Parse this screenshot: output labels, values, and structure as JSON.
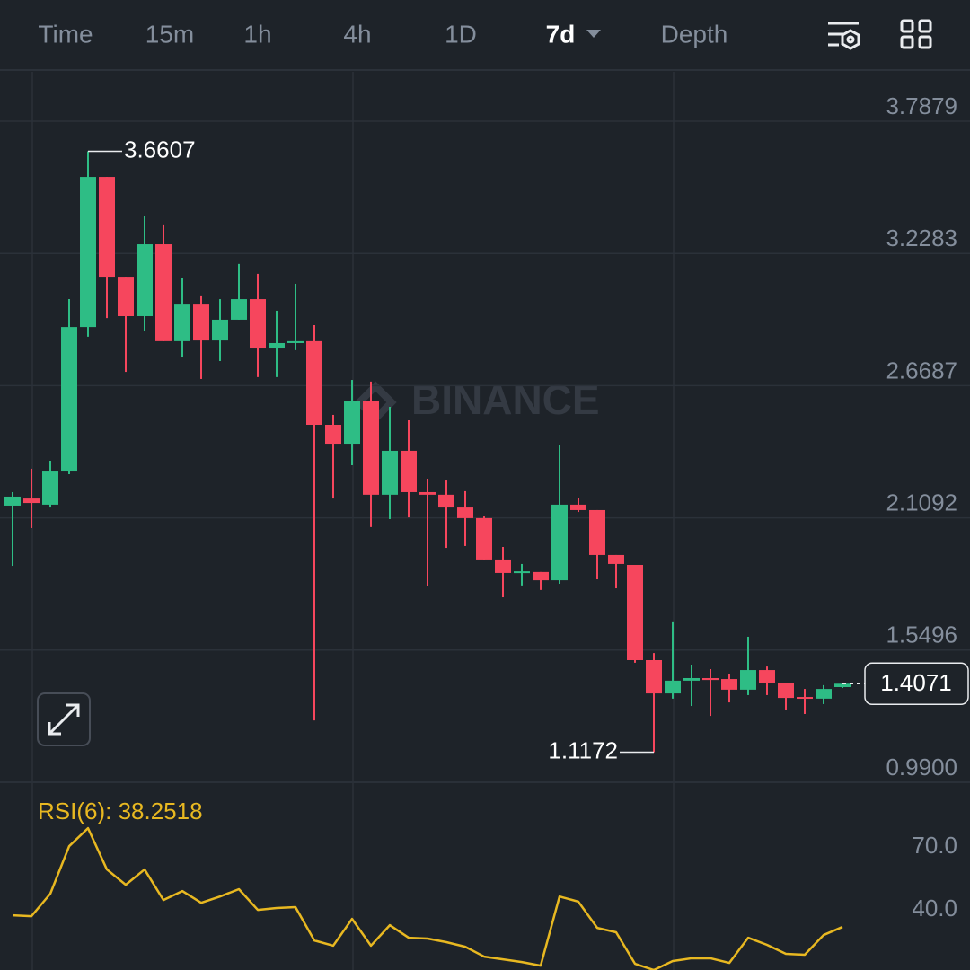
{
  "tabs": [
    {
      "label": "Time"
    },
    {
      "label": "15m"
    },
    {
      "label": "1h"
    },
    {
      "label": "4h"
    },
    {
      "label": "1D"
    },
    {
      "label": "7d",
      "active": true
    },
    {
      "label": "Depth"
    }
  ],
  "chart_data": [
    {
      "type": "candlestick",
      "watermark": "BINANCE",
      "up_color": "#2ebd85",
      "down_color": "#f6465d",
      "grid": true,
      "open": [
        2.161,
        2.191,
        2.165,
        2.309,
        2.917,
        3.552,
        3.13,
        2.963,
        3.267,
        2.857,
        3.012,
        2.86,
        2.948,
        3.035,
        2.826,
        2.849,
        2.857,
        2.503,
        2.423,
        2.602,
        2.207,
        2.393,
        2.218,
        2.207,
        2.153,
        2.108,
        1.933,
        1.876,
        1.88,
        1.845,
        2.165,
        2.142,
        1.952,
        1.91,
        1.507,
        1.366,
        1.42,
        1.431,
        1.427,
        1.382,
        1.465,
        1.412,
        1.351,
        1.344,
        1.393
      ],
      "high": [
        2.218,
        2.317,
        2.351,
        3.035,
        3.6607,
        3.552,
        3.13,
        3.385,
        3.351,
        3.126,
        3.047,
        3.035,
        3.184,
        3.142,
        2.986,
        3.1,
        2.925,
        2.545,
        2.693,
        2.686,
        2.579,
        2.522,
        2.275,
        2.271,
        2.222,
        2.115,
        1.986,
        1.914,
        1.88,
        2.416,
        2.195,
        2.142,
        1.952,
        1.91,
        1.537,
        1.671,
        1.488,
        1.469,
        1.45,
        1.606,
        1.48,
        1.412,
        1.385,
        1.401,
        1.41
      ],
      "low": [
        1.906,
        2.066,
        2.153,
        2.294,
        2.876,
        2.955,
        2.727,
        2.902,
        2.857,
        2.788,
        2.697,
        2.773,
        2.948,
        2.705,
        2.705,
        2.819,
        1.252,
        2.191,
        2.332,
        2.07,
        2.104,
        2.111,
        1.819,
        1.982,
        1.99,
        1.933,
        1.773,
        1.823,
        1.804,
        1.83,
        2.134,
        1.849,
        1.811,
        1.496,
        1.1172,
        1.344,
        1.313,
        1.271,
        1.328,
        1.359,
        1.359,
        1.298,
        1.279,
        1.321,
        1.389
      ],
      "close": [
        2.199,
        2.172,
        2.309,
        2.917,
        3.552,
        3.13,
        2.963,
        3.267,
        2.857,
        3.012,
        2.86,
        2.948,
        3.035,
        2.826,
        2.849,
        2.857,
        2.503,
        2.423,
        2.602,
        2.207,
        2.393,
        2.218,
        2.207,
        2.153,
        2.108,
        1.933,
        1.876,
        1.883,
        1.845,
        2.165,
        2.142,
        1.952,
        1.914,
        1.507,
        1.366,
        1.42,
        1.431,
        1.423,
        1.382,
        1.465,
        1.412,
        1.347,
        1.344,
        1.385,
        1.4071
      ],
      "ylim": [
        0.99,
        3.997
      ],
      "yticks": [
        3.7879,
        3.2283,
        2.6687,
        2.1092,
        1.5496,
        {
          "value": 0.99,
          "label": "0.9900"
        }
      ]
    },
    {
      "type": "line",
      "label": "RSI(6): 38.2518",
      "color": "#e8b821",
      "grid": false,
      "values": [
        43.8,
        43.4,
        54.1,
        76.8,
        85.4,
        65.7,
        58.4,
        65.7,
        51.1,
        55.4,
        49.8,
        52.8,
        56.3,
        46.4,
        47.3,
        47.7,
        31.8,
        29.3,
        42.1,
        29.3,
        39.1,
        33.1,
        32.7,
        31.0,
        28.8,
        24.1,
        22.8,
        21.5,
        19.8,
        52.8,
        50.3,
        37.8,
        35.7,
        20.7,
        17.7,
        22.0,
        23.3,
        23.3,
        21.1,
        33.1,
        29.7,
        25.4,
        25.0,
        34.4,
        38.2518
      ],
      "ylim": [
        17.7,
        106.9
      ],
      "yticks": [
        {
          "value": 70,
          "label": "70.0"
        },
        {
          "value": 40,
          "label": "40.0"
        }
      ]
    }
  ]
}
